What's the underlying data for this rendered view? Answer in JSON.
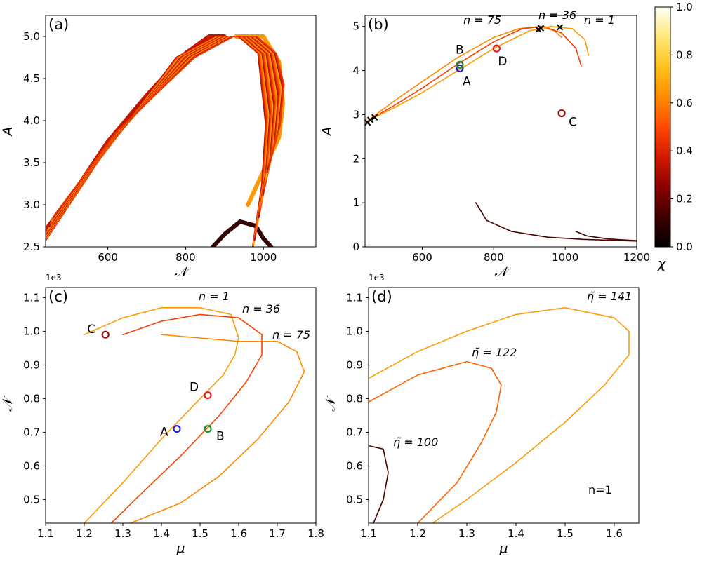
{
  "figure": {
    "colorbar": {
      "label": "χ",
      "ticks": [
        "0.0",
        "0.2",
        "0.4",
        "0.6",
        "0.8",
        "1.0"
      ],
      "cmap": [
        "#000000",
        "#3d0000",
        "#8a0000",
        "#d11a00",
        "#ff4a00",
        "#ff8c00",
        "#ffc21f",
        "#ffe879",
        "#fffff5"
      ]
    }
  },
  "chart_data": [
    {
      "id": "a",
      "panel_label": "(a)",
      "type": "line",
      "xlabel": "𝒩",
      "ylabel": "A",
      "xlim": [
        440,
        1135
      ],
      "ylim": [
        2.5,
        5.25
      ],
      "xticks": [
        "600",
        "800",
        "1000"
      ],
      "yticks": [
        "2.5",
        "3.0",
        "3.5",
        "4.0",
        "4.5",
        "5.0"
      ],
      "description_note": "ensemble of ~100 trajectories colored by chi",
      "series": [
        {
          "name": "ensemble-envelope-left",
          "x": [
            440,
            520,
            600,
            700,
            800,
            860,
            900
          ],
          "y": [
            2.7,
            3.2,
            3.75,
            4.3,
            4.8,
            5.0,
            5.0
          ],
          "chi": 0.35
        },
        {
          "name": "ensemble-envelope-right",
          "x": [
            930,
            1000,
            1040,
            1050,
            1040,
            1000,
            960
          ],
          "y": [
            5.0,
            5.0,
            4.7,
            4.2,
            3.8,
            3.4,
            3.0
          ],
          "chi": 0.65
        },
        {
          "name": "dark-tails",
          "x": [
            870,
            900,
            940,
            980,
            1000,
            1020
          ],
          "y": [
            2.5,
            2.65,
            2.8,
            2.75,
            2.6,
            2.5
          ],
          "chi": 0.1
        }
      ]
    },
    {
      "id": "b",
      "panel_label": "(b)",
      "type": "line",
      "xlabel": "𝒩",
      "ylabel": "A",
      "xlim": [
        440,
        1200
      ],
      "ylim": [
        0,
        5.25
      ],
      "xticks": [
        "600",
        "800",
        "1000",
        "1200"
      ],
      "yticks": [
        "0",
        "1",
        "2",
        "3",
        "4",
        "5"
      ],
      "series_labels": [
        "n = 75",
        "n = 36",
        "n = 1"
      ],
      "series": [
        {
          "name": "n=75",
          "chi": 0.62,
          "x": [
            445,
            520,
            600,
            700,
            800,
            870,
            930,
            970,
            990
          ],
          "y": [
            2.85,
            3.3,
            3.75,
            4.3,
            4.75,
            4.95,
            5.0,
            4.9,
            4.75
          ]
        },
        {
          "name": "n=36",
          "chi": 0.48,
          "x": [
            445,
            520,
            600,
            700,
            800,
            880,
            940,
            990,
            1030,
            1045
          ],
          "y": [
            2.85,
            3.2,
            3.6,
            4.15,
            4.65,
            4.95,
            5.0,
            4.85,
            4.5,
            4.1
          ]
        },
        {
          "name": "n=1",
          "chi": 0.66,
          "x": [
            445,
            520,
            600,
            700,
            800,
            900,
            960,
            1020,
            1055,
            1065
          ],
          "y": [
            2.85,
            3.15,
            3.5,
            4.0,
            4.5,
            4.9,
            5.0,
            4.95,
            4.7,
            4.35
          ]
        },
        {
          "name": "low-branch-1",
          "chi": 0.15,
          "x": [
            750,
            780,
            850,
            950,
            1050,
            1200
          ],
          "y": [
            1.0,
            0.6,
            0.35,
            0.22,
            0.17,
            0.13
          ]
        },
        {
          "name": "low-branch-2",
          "chi": 0.15,
          "x": [
            1030,
            1060,
            1120,
            1200
          ],
          "y": [
            0.35,
            0.25,
            0.18,
            0.14
          ]
        }
      ],
      "markers": [
        {
          "label": "A",
          "x": 705,
          "y": 4.05,
          "color": "#1f1fe0"
        },
        {
          "label": "B",
          "x": 705,
          "y": 4.13,
          "color": "#1f8f1f"
        },
        {
          "label": "D",
          "x": 808,
          "y": 4.5,
          "color": "#e81a1a"
        },
        {
          "label": "C",
          "x": 990,
          "y": 3.03,
          "color": "#9a1010"
        }
      ]
    },
    {
      "id": "c",
      "panel_label": "(c)",
      "type": "line",
      "xlabel": "μ",
      "ylabel": "𝒩",
      "exponent": "1e3",
      "xlim": [
        1.1,
        1.8
      ],
      "ylim": [
        0.43,
        1.13
      ],
      "xticks": [
        "1.1",
        "1.2",
        "1.3",
        "1.4",
        "1.5",
        "1.6",
        "1.7",
        "1.8"
      ],
      "yticks": [
        "0.5",
        "0.6",
        "0.7",
        "0.8",
        "0.9",
        "1.0",
        "1.1"
      ],
      "series_labels": [
        "n = 1",
        "n = 36",
        "n = 75"
      ],
      "series": [
        {
          "name": "n=1",
          "chi": 0.66,
          "x": [
            1.2,
            1.3,
            1.4,
            1.5,
            1.56,
            1.59,
            1.6,
            1.58,
            1.5,
            1.4,
            1.3,
            1.2
          ],
          "y": [
            0.43,
            0.55,
            0.68,
            0.8,
            0.87,
            0.93,
            0.98,
            1.05,
            1.07,
            1.07,
            1.04,
            0.99
          ]
        },
        {
          "name": "n=36",
          "chi": 0.48,
          "x": [
            1.27,
            1.35,
            1.45,
            1.55,
            1.62,
            1.66,
            1.66,
            1.6,
            1.5,
            1.4,
            1.3
          ],
          "y": [
            0.43,
            0.52,
            0.63,
            0.75,
            0.85,
            0.93,
            0.99,
            1.04,
            1.05,
            1.03,
            0.99
          ]
        },
        {
          "name": "n=75",
          "chi": 0.62,
          "x": [
            1.32,
            1.45,
            1.55,
            1.65,
            1.73,
            1.77,
            1.75,
            1.7,
            1.6,
            1.5,
            1.4
          ],
          "y": [
            0.43,
            0.49,
            0.57,
            0.68,
            0.79,
            0.88,
            0.94,
            0.97,
            0.97,
            0.98,
            0.99
          ]
        }
      ],
      "markers": [
        {
          "label": "A",
          "x": 1.44,
          "y": 0.71,
          "color": "#1f1fe0"
        },
        {
          "label": "B",
          "x": 1.52,
          "y": 0.71,
          "color": "#1f8f1f"
        },
        {
          "label": "D",
          "x": 1.52,
          "y": 0.81,
          "color": "#e81a1a"
        },
        {
          "label": "C",
          "x": 1.255,
          "y": 0.99,
          "color": "#9a1010"
        }
      ]
    },
    {
      "id": "d",
      "panel_label": "(d)",
      "type": "line",
      "xlabel": "μ",
      "ylabel": "𝒩",
      "exponent": "1e3",
      "xlim": [
        1.1,
        1.65
      ],
      "ylim": [
        0.43,
        1.13
      ],
      "xticks": [
        "1.1",
        "1.2",
        "1.3",
        "1.4",
        "1.5",
        "1.6"
      ],
      "yticks": [
        "0.5",
        "0.6",
        "0.7",
        "0.8",
        "0.9",
        "1.0",
        "1.1"
      ],
      "annotation": "n=1",
      "series_labels": [
        "η̃ = 141",
        "η̃ = 122",
        "η̃ = 100"
      ],
      "series": [
        {
          "name": "eta=141",
          "chi": 0.66,
          "x": [
            1.23,
            1.3,
            1.4,
            1.5,
            1.58,
            1.63,
            1.63,
            1.6,
            1.5,
            1.4,
            1.3,
            1.2,
            1.1
          ],
          "y": [
            0.43,
            0.5,
            0.61,
            0.73,
            0.84,
            0.93,
            1.0,
            1.04,
            1.07,
            1.05,
            1.0,
            0.94,
            0.86
          ]
        },
        {
          "name": "eta=122",
          "chi": 0.55,
          "x": [
            1.2,
            1.28,
            1.33,
            1.36,
            1.37,
            1.35,
            1.3,
            1.2,
            1.1
          ],
          "y": [
            0.43,
            0.55,
            0.67,
            0.76,
            0.84,
            0.89,
            0.91,
            0.87,
            0.79
          ]
        },
        {
          "name": "eta=100",
          "chi": 0.15,
          "x": [
            1.11,
            1.13,
            1.14,
            1.13,
            1.1
          ],
          "y": [
            0.43,
            0.5,
            0.58,
            0.65,
            0.66
          ]
        }
      ]
    }
  ]
}
